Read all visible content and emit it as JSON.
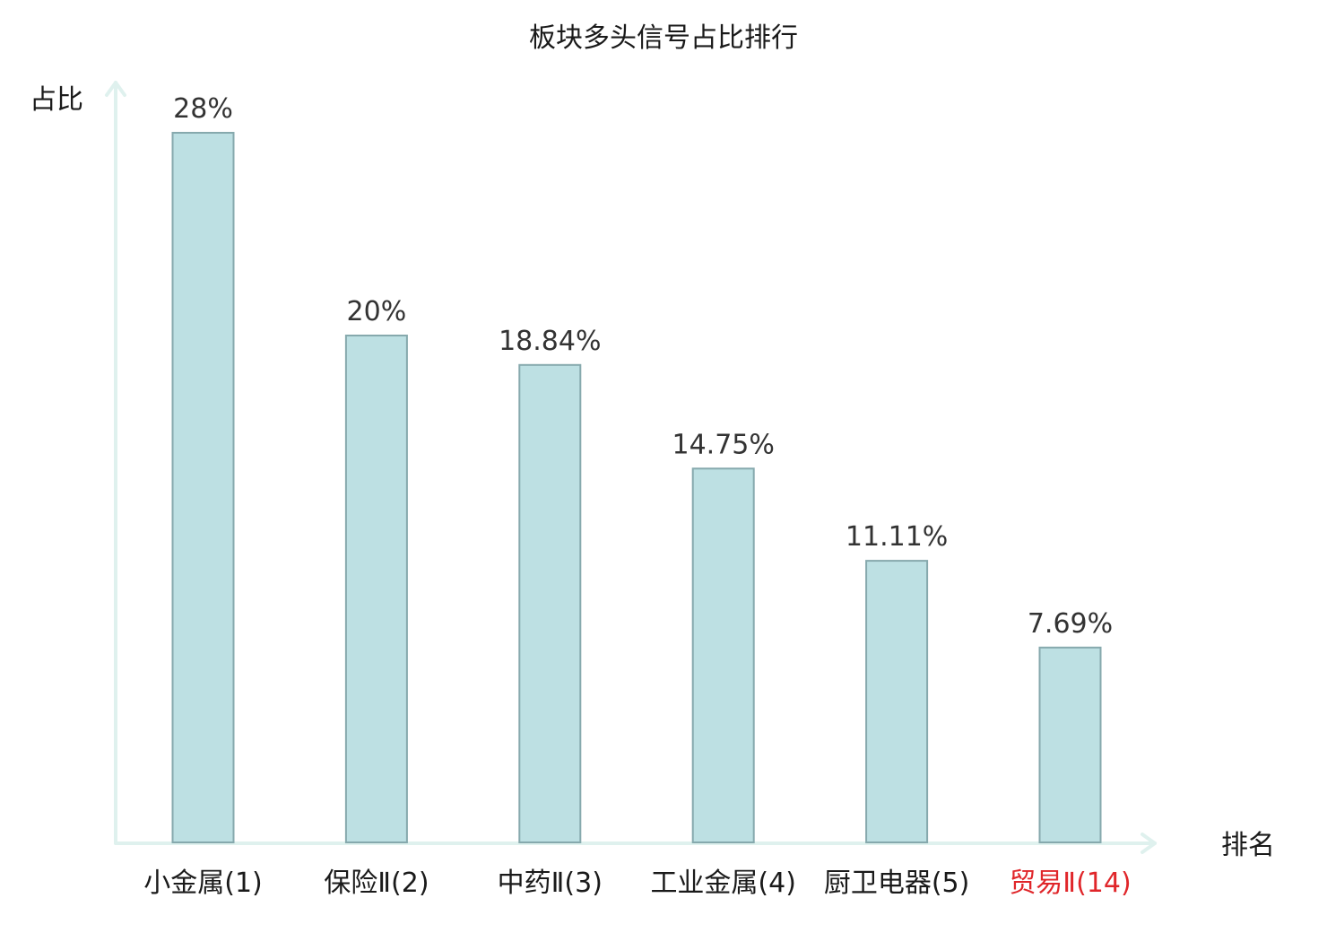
{
  "chart_data": {
    "type": "bar",
    "title": "板块多头信号占比排行",
    "xlabel": "排名",
    "ylabel": "占比",
    "categories": [
      "小金属(1)",
      "保险Ⅱ(2)",
      "中药Ⅱ(3)",
      "工业金属(4)",
      "厨卫电器(5)",
      "贸易Ⅱ(14)"
    ],
    "values": [
      28,
      20,
      18.84,
      14.75,
      11.11,
      7.69
    ],
    "value_labels": [
      "28%",
      "20%",
      "18.84%",
      "14.75%",
      "11.11%",
      "7.69%"
    ],
    "highlight_index": 5,
    "ylim": [
      0,
      28
    ],
    "grid": false,
    "legend": "none"
  },
  "colors": {
    "bar_fill": "#bde0e3",
    "bar_stroke": "#86a9ad",
    "axis": "#dff1ee",
    "text": "#1a1a1a",
    "value_text": "#333333",
    "highlight": "#e0262a"
  }
}
